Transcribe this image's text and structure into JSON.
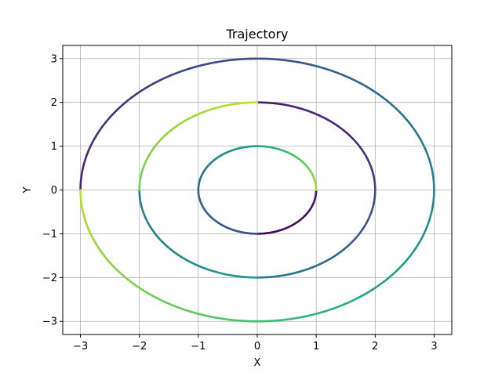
{
  "chart_data": {
    "type": "line",
    "title": "Trajectory",
    "xlabel": "X",
    "ylabel": "Y",
    "xlim": [
      -3.3,
      3.3
    ],
    "ylim": [
      -3.3,
      3.3
    ],
    "xticks": [
      -3,
      -2,
      -1,
      0,
      1,
      2,
      3
    ],
    "yticks": [
      -3,
      -2,
      -1,
      0,
      1,
      2,
      3
    ],
    "grid": true,
    "legend": "none",
    "colormap": "viridis",
    "series": [
      {
        "segments": [
          {
            "shape": "arc",
            "radius": 1,
            "from_deg": -90,
            "to_deg": 0,
            "t0": 0.02,
            "t1": 0.07
          },
          {
            "shape": "arc",
            "radius": 2,
            "from_deg": 90,
            "to_deg": 0,
            "t0": 0.07,
            "t1": 0.18
          },
          {
            "shape": "arc",
            "radius": 3,
            "from_deg": 180,
            "to_deg": 90,
            "t0": 0.1,
            "t1": 0.24
          },
          {
            "shape": "arc",
            "radius": 3,
            "from_deg": 90,
            "to_deg": 0,
            "t0": 0.24,
            "t1": 0.46
          },
          {
            "shape": "arc",
            "radius": 2,
            "from_deg": 0,
            "to_deg": -90,
            "t0": 0.22,
            "t1": 0.42
          },
          {
            "shape": "arc",
            "radius": 1,
            "from_deg": -90,
            "to_deg": -180,
            "t0": 0.24,
            "t1": 0.34
          },
          {
            "shape": "arc",
            "radius": 1,
            "from_deg": 180,
            "to_deg": 90,
            "t0": 0.34,
            "t1": 0.58
          },
          {
            "shape": "arc",
            "radius": 1,
            "from_deg": 90,
            "to_deg": 0,
            "t0": 0.58,
            "t1": 0.88
          },
          {
            "shape": "arc",
            "radius": 2,
            "from_deg": 180,
            "to_deg": 270,
            "t0": 0.42,
            "t1": 0.52
          },
          {
            "shape": "arc",
            "radius": 2,
            "from_deg": 180,
            "to_deg": 90,
            "t0": 0.78,
            "t1": 0.9
          },
          {
            "shape": "arc",
            "radius": 3,
            "from_deg": 0,
            "to_deg": -90,
            "t0": 0.46,
            "t1": 0.7
          },
          {
            "shape": "arc",
            "radius": 3,
            "from_deg": -90,
            "to_deg": -180,
            "t0": 0.7,
            "t1": 0.9
          }
        ]
      }
    ]
  }
}
